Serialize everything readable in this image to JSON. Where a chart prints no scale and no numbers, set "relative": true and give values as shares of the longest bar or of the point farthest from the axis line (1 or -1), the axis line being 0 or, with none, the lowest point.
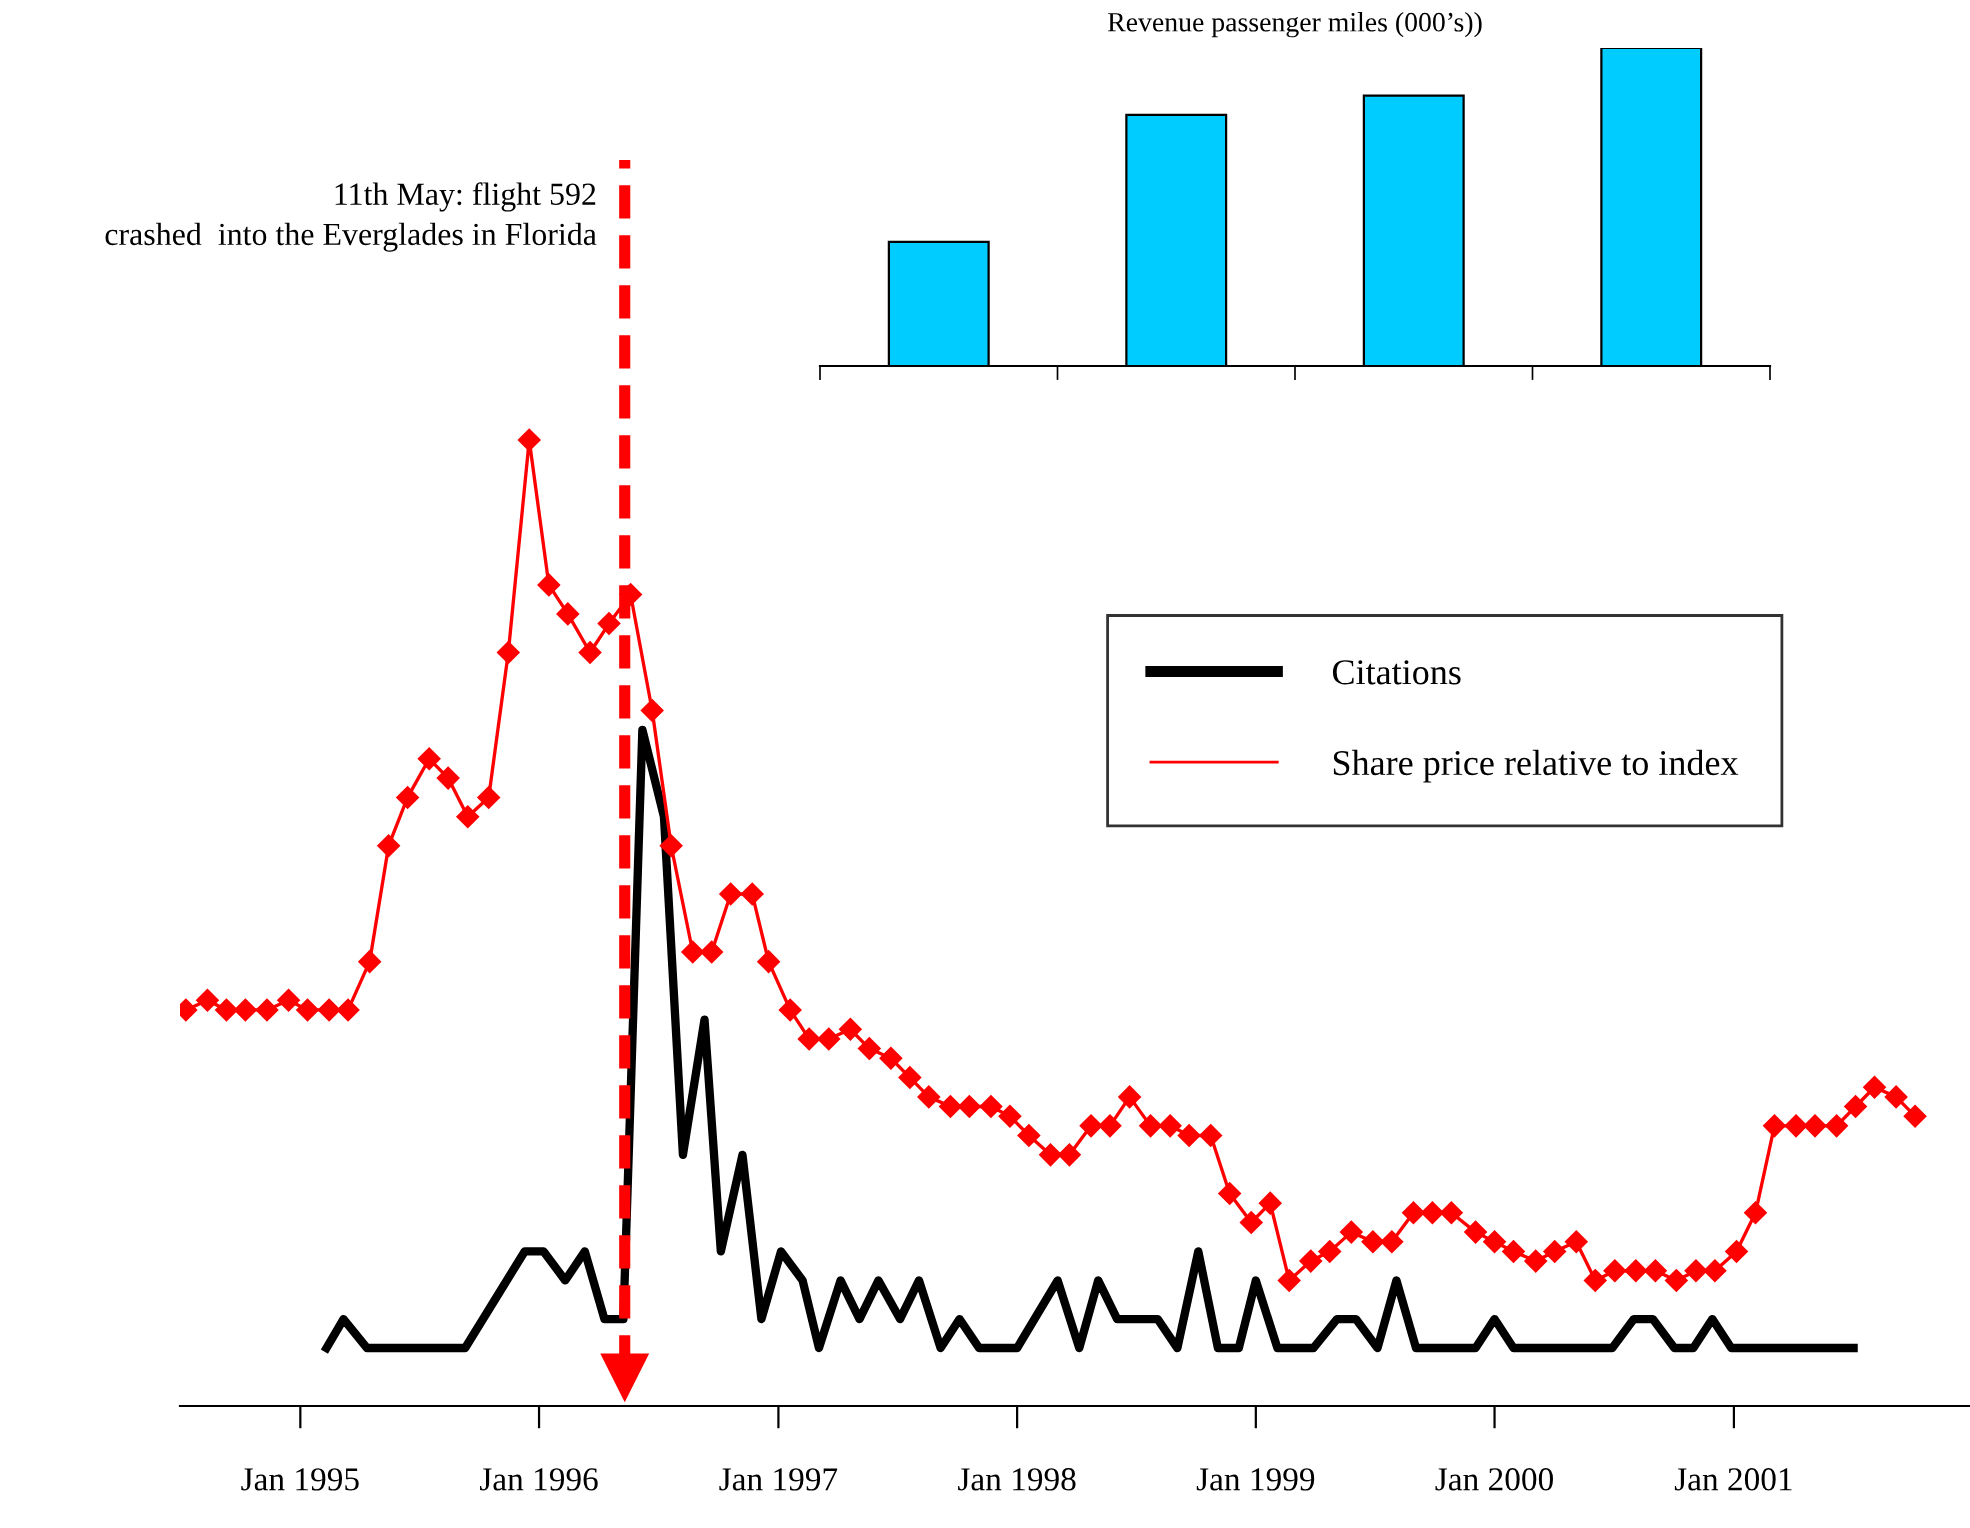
{
  "chart_data": [
    {
      "type": "line",
      "relative": true,
      "xlim": [
        "1994-07-01",
        "2001-12-28"
      ],
      "xticks": [
        {
          "value": "1995-01-01",
          "label": "Jan 1995"
        },
        {
          "value": "1996-01-01",
          "label": "Jan 1996"
        },
        {
          "value": "1997-01-01",
          "label": "Jan 1997"
        },
        {
          "value": "1998-01-01",
          "label": "Jan 1998"
        },
        {
          "value": "1999-01-01",
          "label": "Jan 1999"
        },
        {
          "value": "2000-01-01",
          "label": "Jan 2000"
        },
        {
          "value": "2001-01-01",
          "label": "Jan 2001"
        }
      ],
      "grid": false,
      "legend": "right",
      "ref_lines": [
        {
          "axis": "x",
          "value": "1996-05-11",
          "label": "11th May: flight 592\ncrashed  into the Everglades in Florida",
          "color": "#ff0000",
          "line_style": "dashed"
        }
      ],
      "series": [
        {
          "name": "Citations",
          "color": "#000000",
          "marker": "none",
          "line_style": "solid",
          "x": [
            "1995-02-10",
            "1995-03-08",
            "1995-04-13",
            "1995-09-10",
            "1995-12-10",
            "1996-01-08",
            "1996-02-10",
            "1996-03-11",
            "1996-04-10",
            "1996-05-09",
            "1996-06-07",
            "1996-07-10",
            "1996-08-08",
            "1996-09-10",
            "1996-10-05",
            "1996-11-07",
            "1996-12-06",
            "1997-01-05",
            "1997-02-07",
            "1997-03-04",
            "1997-04-06",
            "1997-05-05",
            "1997-06-03",
            "1997-07-06",
            "1997-08-04",
            "1997-09-06",
            "1997-10-05",
            "1997-11-04",
            "1998-01-01",
            "1998-03-04",
            "1998-04-06",
            "1998-05-05",
            "1998-06-03",
            "1998-08-04",
            "1998-09-03",
            "1998-10-05",
            "1998-11-04",
            "1998-12-06",
            "1999-01-01",
            "1999-02-03",
            "1999-03-30",
            "1999-05-05",
            "1999-06-03",
            "1999-07-06",
            "1999-08-04",
            "1999-09-03",
            "1999-12-03",
            "2000-01-01",
            "2000-01-30",
            "2000-06-29",
            "2000-08-01",
            "2000-08-30",
            "2000-10-02",
            "2000-10-31",
            "2000-11-29",
            "2000-12-28",
            "2001-07-03"
          ],
          "values": [
            0.06,
            0.09,
            0.06,
            0.06,
            0.16,
            0.16,
            0.13,
            0.16,
            0.09,
            0.09,
            0.7,
            0.61,
            0.26,
            0.4,
            0.16,
            0.26,
            0.09,
            0.16,
            0.13,
            0.06,
            0.13,
            0.09,
            0.13,
            0.09,
            0.13,
            0.06,
            0.09,
            0.06,
            0.06,
            0.13,
            0.06,
            0.13,
            0.09,
            0.09,
            0.06,
            0.16,
            0.06,
            0.06,
            0.13,
            0.06,
            0.06,
            0.09,
            0.09,
            0.06,
            0.13,
            0.06,
            0.06,
            0.09,
            0.06,
            0.06,
            0.09,
            0.09,
            0.06,
            0.06,
            0.09,
            0.06,
            0.06
          ]
        },
        {
          "name": "Share price relative to index",
          "color": "#ff0000",
          "marker": "diamond",
          "line_style": "solid",
          "x": [
            "1994-07-10",
            "1994-08-12",
            "1994-09-10",
            "1994-10-09",
            "1994-11-11",
            "1994-12-14",
            "1995-01-12",
            "1995-02-14",
            "1995-03-15",
            "1995-04-17",
            "1995-05-16",
            "1995-06-14",
            "1995-07-17",
            "1995-08-15",
            "1995-09-14",
            "1995-10-16",
            "1995-11-15",
            "1995-12-17",
            "1996-01-16",
            "1996-02-14",
            "1996-03-19",
            "1996-04-17",
            "1996-05-20",
            "1996-06-22",
            "1996-07-21",
            "1996-08-23",
            "1996-09-21",
            "1996-10-20",
            "1996-11-22",
            "1996-12-17",
            "1997-01-19",
            "1997-02-17",
            "1997-03-19",
            "1997-04-21",
            "1997-05-20",
            "1997-06-22",
            "1997-07-21",
            "1997-08-19",
            "1997-09-21",
            "1997-10-20",
            "1997-11-22",
            "1997-12-21",
            "1998-01-19",
            "1998-02-21",
            "1998-03-22",
            "1998-04-24",
            "1998-05-23",
            "1998-06-22",
            "1998-07-24",
            "1998-08-23",
            "1998-09-21",
            "1998-10-24",
            "1998-11-22",
            "1998-12-25",
            "1999-01-23",
            "1999-02-21",
            "1999-03-26",
            "1999-04-24",
            "1999-05-27",
            "1999-06-29",
            "1999-07-28",
            "1999-08-30",
            "1999-09-28",
            "1999-10-27",
            "1999-12-03",
            "2000-01-01",
            "2000-01-30",
            "2000-03-04",
            "2000-04-02",
            "2000-05-05",
            "2000-06-03",
            "2000-07-03",
            "2000-08-04",
            "2000-09-03",
            "2000-10-05",
            "2000-11-04",
            "2000-12-03",
            "2001-01-05",
            "2001-02-03",
            "2001-03-04",
            "2001-04-06",
            "2001-05-05",
            "2001-06-07",
            "2001-07-06",
            "2001-08-04",
            "2001-09-06",
            "2001-10-05"
          ],
          "values": [
            0.41,
            0.42,
            0.41,
            0.41,
            0.41,
            0.42,
            0.41,
            0.41,
            0.41,
            0.46,
            0.58,
            0.63,
            0.67,
            0.65,
            0.61,
            0.63,
            0.78,
            1.0,
            0.85,
            0.82,
            0.78,
            0.81,
            0.84,
            0.72,
            0.58,
            0.47,
            0.47,
            0.53,
            0.53,
            0.46,
            0.41,
            0.38,
            0.38,
            0.39,
            0.37,
            0.36,
            0.34,
            0.32,
            0.31,
            0.31,
            0.31,
            0.3,
            0.28,
            0.26,
            0.26,
            0.29,
            0.29,
            0.32,
            0.29,
            0.29,
            0.28,
            0.28,
            0.22,
            0.19,
            0.21,
            0.13,
            0.15,
            0.16,
            0.18,
            0.17,
            0.17,
            0.2,
            0.2,
            0.2,
            0.18,
            0.17,
            0.16,
            0.15,
            0.16,
            0.17,
            0.13,
            0.14,
            0.14,
            0.14,
            0.13,
            0.14,
            0.14,
            0.16,
            0.2,
            0.29,
            0.29,
            0.29,
            0.29,
            0.31,
            0.33,
            0.32,
            0.3
          ]
        }
      ]
    },
    {
      "type": "bar",
      "relative": true,
      "title": "Revenue passenger miles (000’s))",
      "categories": [
        null,
        null,
        null,
        null
      ],
      "values": [
        0.39,
        0.79,
        0.85,
        1.0
      ],
      "color": "#00ccff",
      "grid": false
    }
  ]
}
